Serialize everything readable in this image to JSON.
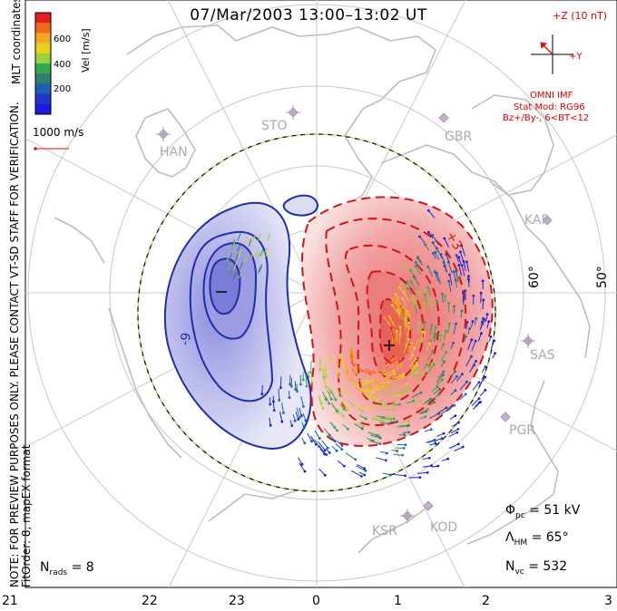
{
  "title": "07/Mar/2003 13:00–13:02 UT",
  "notice": "NOTE: FOR PREVIEW PURPOSES ONLY. PLEASE CONTACT VT-SD STAFF FOR VERIFICATION.",
  "fit_order": "FitOrder: 8, mapEX format",
  "coords_label": "MLT coordinates",
  "colorbar": {
    "title": "Vel [m/s]",
    "ticks": [
      "600",
      "400",
      "200"
    ],
    "colors": [
      "#e41d1d",
      "#f06a1d",
      "#f5a623",
      "#e8d21d",
      "#9ad13a",
      "#34a853",
      "#2e7d6e",
      "#1e5fb0",
      "#2233c8",
      "#1a1ae0"
    ]
  },
  "vector_scale": "1000 m/s",
  "imf": {
    "scale": "+Z (10 nT)",
    "y_label": "+Y",
    "source": "OMNI IMF",
    "model": "Stat Mod: RG96",
    "condition": "Bz+/By-, 6<BT<12"
  },
  "latitude_labels": [
    "60°",
    "50°"
  ],
  "stations": [
    "HAN",
    "STO",
    "GBR",
    "KAP",
    "SAS",
    "PGR",
    "KSR",
    "KOD"
  ],
  "stats": {
    "phi_pc": "= 51 kV",
    "lambda_hm": "= 65°",
    "n_vc": "= 532",
    "n_rads": "= 8"
  },
  "mlt_hours": [
    "21",
    "22",
    "23",
    "0",
    "1",
    "2",
    "3"
  ],
  "contour_labels": [
    "-9",
    "+3",
    "−",
    "+"
  ]
}
